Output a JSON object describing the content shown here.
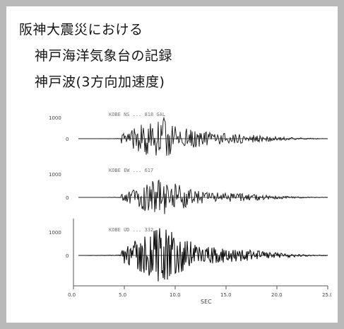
{
  "slide": {
    "title_line1": "阪神大震災における",
    "title_line2": "神戸海洋気象台の記録",
    "title_line3": "神戸波(3方向加速度)"
  },
  "chart_data": {
    "type": "line",
    "description_of_panels": "three stacked acceleration time histories sharing a time axis",
    "xlim": [
      0,
      30
    ],
    "x_tick_labels": [
      "0.0",
      "5.0",
      "10.0",
      "15.0",
      "20.0",
      "25.0"
    ],
    "xlabel": "SEC",
    "panels": [
      {
        "y_top_label": "1000",
        "y_zero_label": "0",
        "caption": "KOBE NS ... 818 GAL"
      },
      {
        "y_top_label": "1000",
        "y_zero_label": "0",
        "caption": "KOBE EW ... 617"
      },
      {
        "y_top_label": "1000",
        "y_zero_label": "0",
        "caption": "KOBE UD ... 332"
      }
    ]
  }
}
